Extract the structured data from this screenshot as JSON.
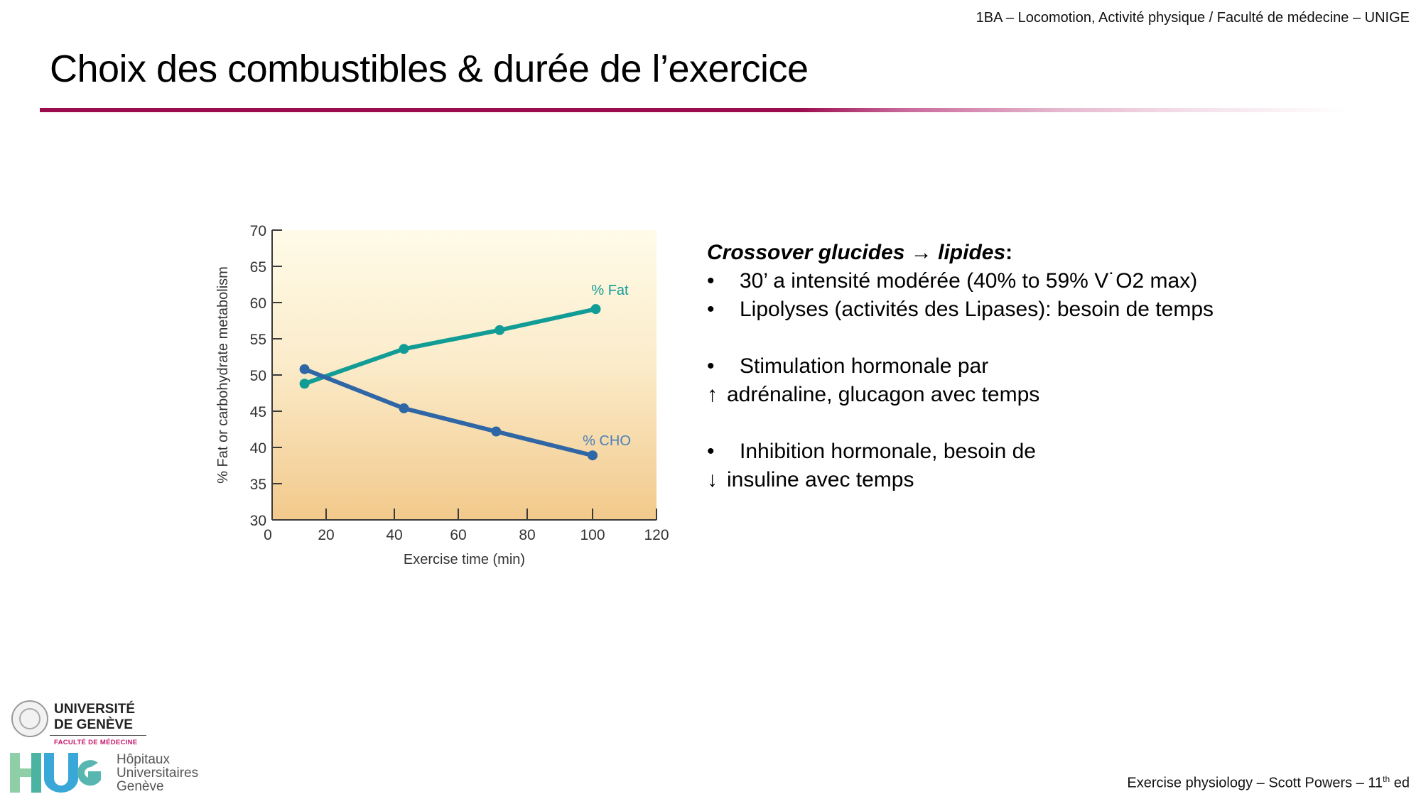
{
  "header": {
    "course": "1BA – Locomotion, Activité physique / Faculté de médecine – UNIGE"
  },
  "slide": {
    "title": "Choix des combustibles & durée de l’exercice",
    "accent_color": "#9b0c4c"
  },
  "text": {
    "heading_italic": "Crossover glucides ",
    "heading_arrow": "→",
    "heading_italic2": "lipides",
    "heading_colon": ":",
    "bullets": [
      {
        "symbol": "•",
        "text": "30’ a intensité modérée (40% to 59% V˙O2 max)"
      },
      {
        "symbol": "•",
        "text": "Lipolyses (activités des Lipases): besoin de temps"
      },
      {
        "symbol": "•",
        "text": "Stimulation hormonale par",
        "continuation_icon": "↑",
        "continuation": "adrénaline, glucagon avec temps"
      },
      {
        "symbol": "•",
        "text": "Inhibition hormonale, besoin de",
        "continuation_icon": "↓",
        "continuation": "insuline avec temps"
      }
    ]
  },
  "footer": {
    "reference": "Exercise physiology – Scott Powers – 11",
    "reference_sup": "th",
    "reference_end": " ed"
  },
  "logos": {
    "unige_line1": "UNIVERSITÉ",
    "unige_line2": "DE GENÈVE",
    "faculty": "FACULTÉ DE MÉDECINE",
    "hug_line1": "Hôpitaux",
    "hug_line2": "Universitaires",
    "hug_line3": "Genève"
  },
  "chart_data": {
    "type": "line",
    "title": "",
    "xlabel": "Exercise time (min)",
    "ylabel": "% Fat or carbohydrate metabolism",
    "x_ticks": [
      0,
      20,
      40,
      60,
      80,
      100,
      120
    ],
    "y_ticks": [
      30,
      35,
      40,
      45,
      50,
      55,
      60,
      65,
      70
    ],
    "xlim": [
      0,
      120
    ],
    "ylim": [
      30,
      70
    ],
    "grid": false,
    "background": "gradient light yellow (top) to light orange (bottom)",
    "series": [
      {
        "name": "% Fat",
        "color": "#129c96",
        "x": [
          12,
          43,
          72,
          101
        ],
        "values": [
          48.8,
          53.6,
          56.2,
          59.1
        ]
      },
      {
        "name": "% CHO",
        "color": "#2f66a6",
        "x": [
          12,
          43,
          71,
          100
        ],
        "values": [
          50.8,
          45.4,
          42.2,
          38.9
        ]
      }
    ],
    "legend": "inline labels at line ends"
  }
}
